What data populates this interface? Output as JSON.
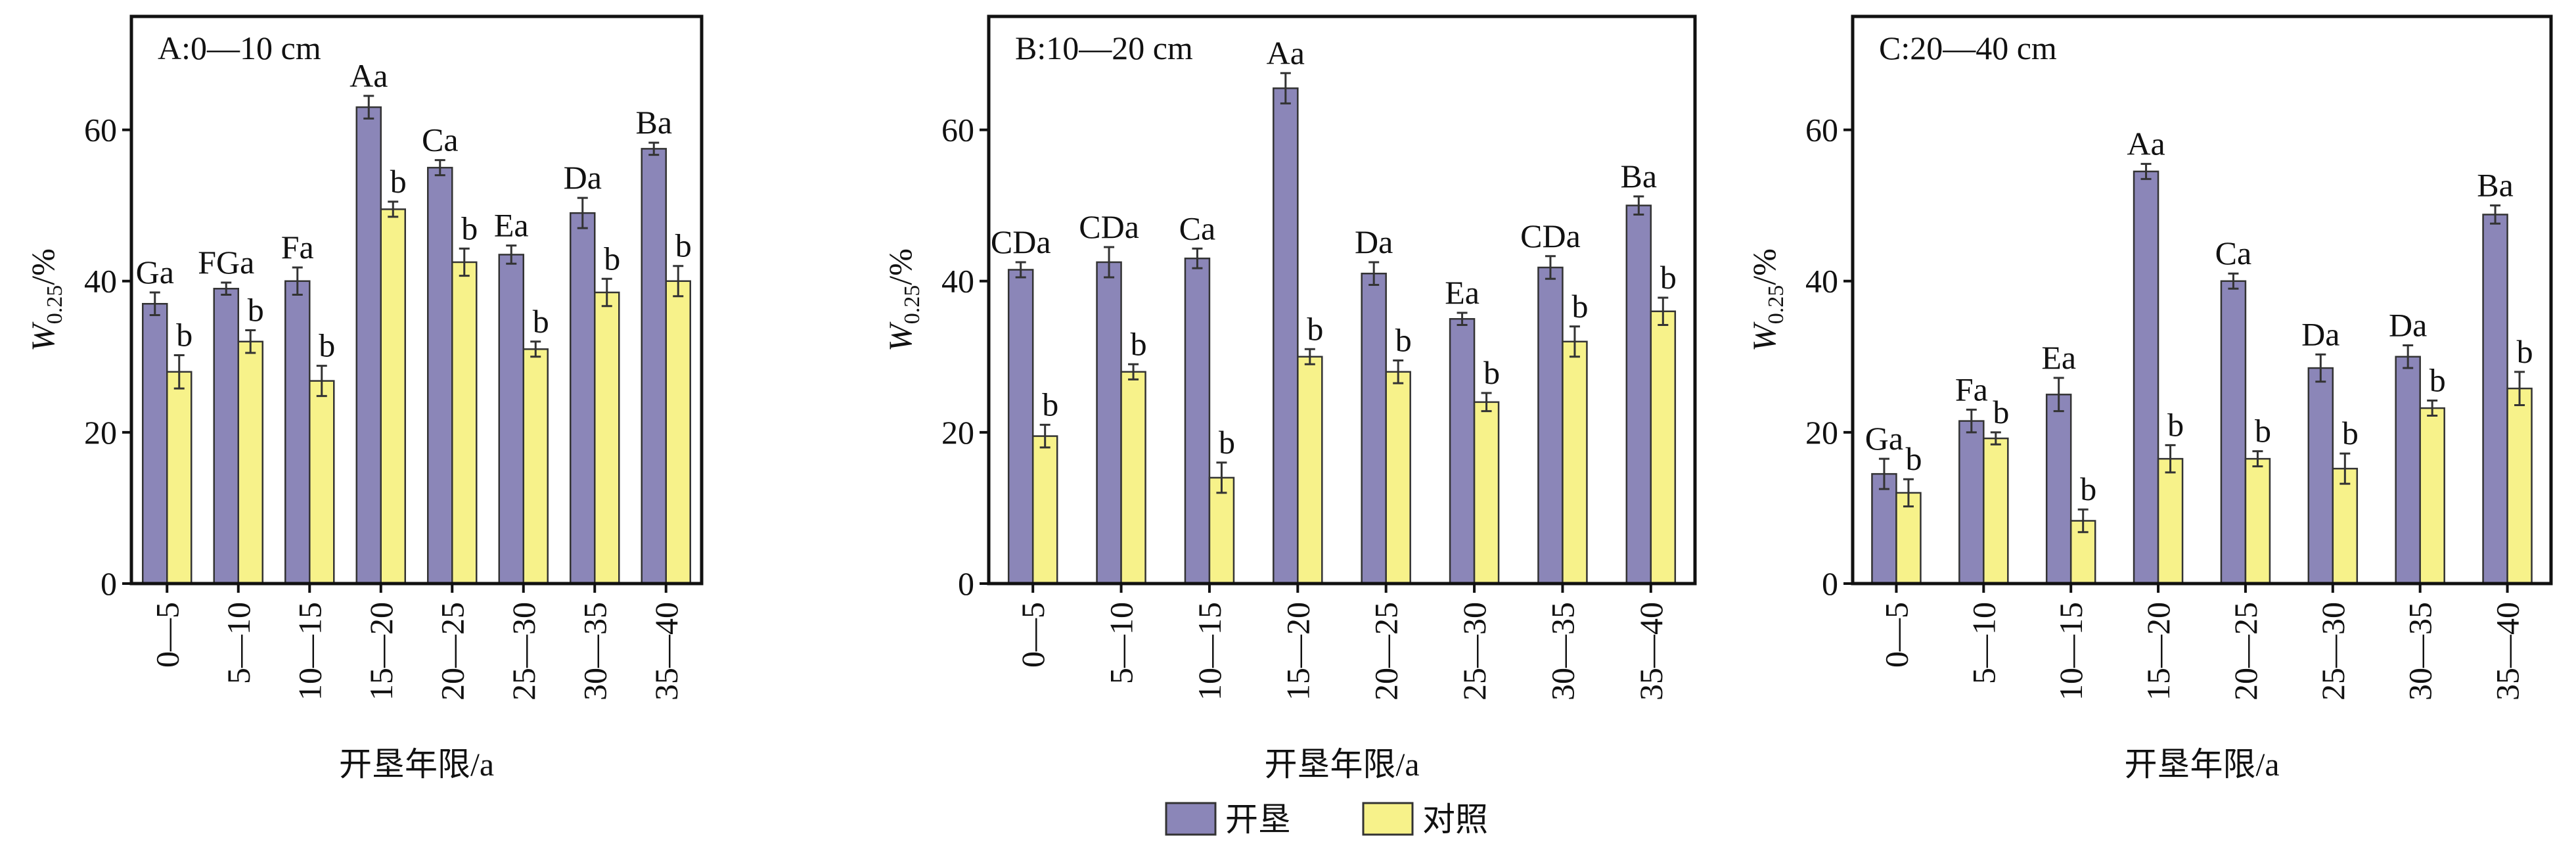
{
  "chart_data": [
    {
      "type": "bar",
      "title": "A:0—10 cm",
      "ylabel": {
        "main": "W",
        "sub": "0.25",
        "unit": "/%"
      },
      "xlabel": "开垦年限/a",
      "categories": [
        "0—5",
        "5—10",
        "10—15",
        "15—20",
        "20—25",
        "25—30",
        "30—35",
        "35—40"
      ],
      "ylim": [
        0,
        75
      ],
      "yticks": [
        0,
        20,
        40,
        60
      ],
      "series": [
        {
          "name": "开垦",
          "color": "#8b86b8",
          "values": [
            37,
            39,
            40,
            63,
            55,
            43.5,
            49,
            57.5
          ],
          "errors": [
            1.5,
            0.8,
            1.8,
            1.5,
            1,
            1.2,
            2,
            0.8
          ],
          "letters": [
            "Ga",
            "FGa",
            "Fa",
            "Aa",
            "Ca",
            "Ea",
            "Da",
            "Ba"
          ]
        },
        {
          "name": "对照",
          "color": "#f7f28a",
          "values": [
            28,
            32,
            26.8,
            49.5,
            42.5,
            31,
            38.5,
            40
          ],
          "errors": [
            2.2,
            1.5,
            2,
            1,
            1.8,
            1,
            1.8,
            2
          ],
          "letters": [
            "b",
            "b",
            "b",
            "b",
            "b",
            "b",
            "b",
            "b"
          ]
        }
      ]
    },
    {
      "type": "bar",
      "title": "B:10—20 cm",
      "ylabel": {
        "main": "W",
        "sub": "0.25",
        "unit": "/%"
      },
      "xlabel": "开垦年限/a",
      "categories": [
        "0—5",
        "5—10",
        "10—15",
        "15—20",
        "20—25",
        "25—30",
        "30—35",
        "35—40"
      ],
      "ylim": [
        0,
        75
      ],
      "yticks": [
        0,
        20,
        40,
        60
      ],
      "series": [
        {
          "name": "开垦",
          "color": "#8b86b8",
          "values": [
            41.5,
            42.5,
            43,
            65.5,
            41,
            35,
            41.8,
            50
          ],
          "errors": [
            1,
            2,
            1.3,
            2,
            1.5,
            0.8,
            1.5,
            1.2
          ],
          "letters": [
            "CDa",
            "CDa",
            "Ca",
            "Aa",
            "Da",
            "Ea",
            "CDa",
            "Ba"
          ]
        },
        {
          "name": "对照",
          "color": "#f7f28a",
          "values": [
            19.5,
            28,
            14,
            30,
            28,
            24,
            32,
            36
          ],
          "errors": [
            1.5,
            1,
            2,
            1,
            1.5,
            1.2,
            2,
            1.8
          ],
          "letters": [
            "b",
            "b",
            "b",
            "b",
            "b",
            "b",
            "b",
            "b"
          ]
        }
      ]
    },
    {
      "type": "bar",
      "title": "C:20—40 cm",
      "ylabel": {
        "main": "W",
        "sub": "0.25",
        "unit": "/%"
      },
      "xlabel": "开垦年限/a",
      "categories": [
        "0—5",
        "5—10",
        "10—15",
        "15—20",
        "20—25",
        "25—30",
        "30—35",
        "35—40"
      ],
      "ylim": [
        0,
        75
      ],
      "yticks": [
        0,
        20,
        40,
        60
      ],
      "series": [
        {
          "name": "开垦",
          "color": "#8b86b8",
          "values": [
            14.5,
            21.5,
            25,
            54.5,
            40,
            28.5,
            30,
            48.8
          ],
          "errors": [
            2,
            1.5,
            2.2,
            1,
            1,
            1.8,
            1.5,
            1.2
          ],
          "letters": [
            "Ga",
            "Fa",
            "Ea",
            "Aa",
            "Ca",
            "Da",
            "Da",
            "Ba"
          ]
        },
        {
          "name": "对照",
          "color": "#f7f28a",
          "values": [
            12,
            19.2,
            8.3,
            16.5,
            16.5,
            15.2,
            23.2,
            25.8
          ],
          "errors": [
            1.8,
            0.8,
            1.5,
            1.8,
            1,
            2,
            1,
            2.2
          ],
          "letters": [
            "b",
            "b",
            "b",
            "b",
            "b",
            "b",
            "b",
            "b"
          ]
        }
      ]
    }
  ]
}
